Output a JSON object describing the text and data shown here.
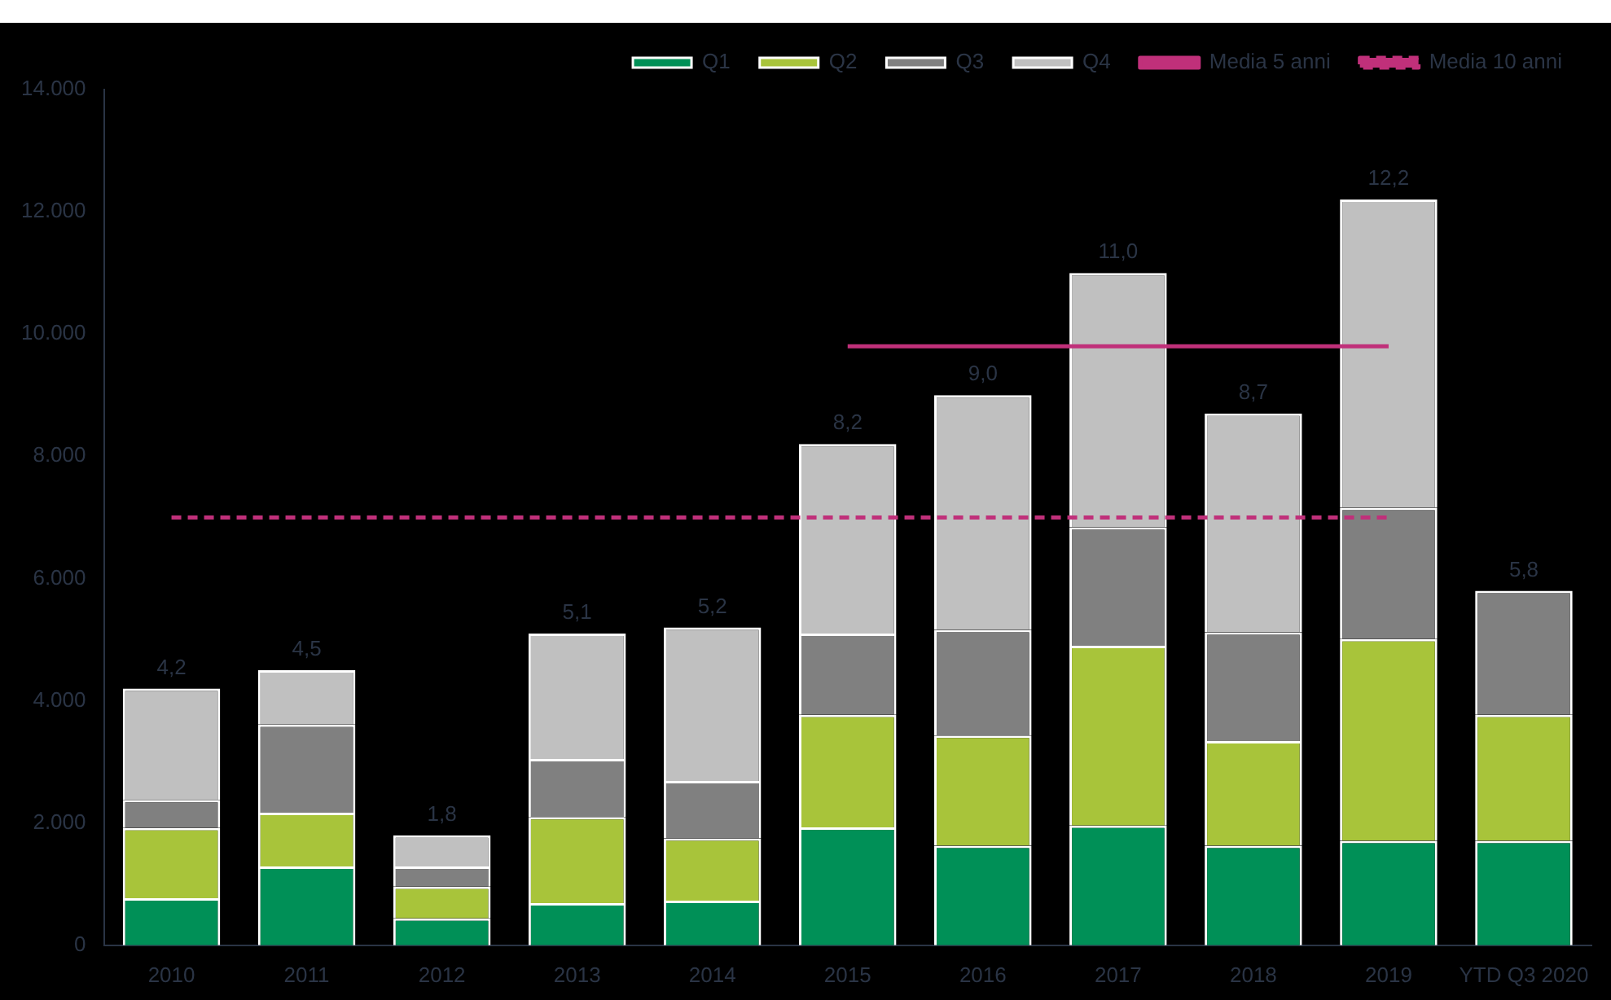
{
  "chart_data": {
    "type": "bar",
    "stacked": true,
    "categories": [
      "2010",
      "2011",
      "2012",
      "2013",
      "2014",
      "2015",
      "2016",
      "2017",
      "2018",
      "2019",
      "YTD Q3 2020"
    ],
    "series": [
      {
        "name": "Q1",
        "color": "#009057",
        "values": [
          770,
          1290,
          440,
          690,
          730,
          1930,
          1630,
          1960,
          1630,
          1710,
          1710
        ]
      },
      {
        "name": "Q2",
        "color": "#a8c43a",
        "values": [
          1150,
          880,
          520,
          1410,
          1020,
          1840,
          1800,
          2940,
          1710,
          3300,
          2060
        ]
      },
      {
        "name": "Q3",
        "color": "#808080",
        "values": [
          460,
          1440,
          330,
          950,
          940,
          1330,
          1730,
          1940,
          1780,
          2150,
          2030
        ]
      },
      {
        "name": "Q4",
        "color": "#c0c0c0",
        "values": [
          1820,
          890,
          510,
          2050,
          2510,
          3100,
          3840,
          4160,
          3580,
          5040,
          null
        ]
      },
      {
        "name": "Media 5 anni",
        "type": "line",
        "color": "#c0307a",
        "line_style": "solid",
        "values": [
          null,
          null,
          null,
          null,
          null,
          9800,
          9800,
          9800,
          9800,
          9800,
          null
        ]
      },
      {
        "name": "Media 10 anni",
        "type": "line",
        "color": "#c0307a",
        "line_style": "dashed",
        "values": [
          7000,
          7000,
          7000,
          7000,
          7000,
          7000,
          7000,
          7000,
          7000,
          7000,
          null
        ]
      }
    ],
    "annotations": [
      {
        "text": "4,2",
        "x": "2010",
        "y": 4200
      },
      {
        "text": "4,5",
        "x": "2011",
        "y": 4500
      },
      {
        "text": "1,8",
        "x": "2012",
        "y": 1800
      },
      {
        "text": "5,1",
        "x": "2013",
        "y": 5100
      },
      {
        "text": "5,2",
        "x": "2014",
        "y": 5200
      },
      {
        "text": "8,2",
        "x": "2015",
        "y": 8200
      },
      {
        "text": "9,0",
        "x": "2016",
        "y": 9000
      },
      {
        "text": "11,0",
        "x": "2017",
        "y": 11000
      },
      {
        "text": "8,7",
        "x": "2018",
        "y": 8700
      },
      {
        "text": "12,2",
        "x": "2019",
        "y": 12200
      },
      {
        "text": "5,8",
        "x": "YTD Q3 2020",
        "y": 5800
      }
    ],
    "ylim": [
      0,
      14000
    ],
    "yticks": [
      {
        "value": 0,
        "label": "0"
      },
      {
        "value": 2000,
        "label": "2.000"
      },
      {
        "value": 4000,
        "label": "4.000"
      },
      {
        "value": 6000,
        "label": "6.000"
      },
      {
        "value": 8000,
        "label": "8.000"
      },
      {
        "value": 10000,
        "label": "10.000"
      },
      {
        "value": 12000,
        "label": "12.000"
      },
      {
        "value": 14000,
        "label": "14.000"
      }
    ],
    "grid": false,
    "legend": "top",
    "marker": "none"
  }
}
